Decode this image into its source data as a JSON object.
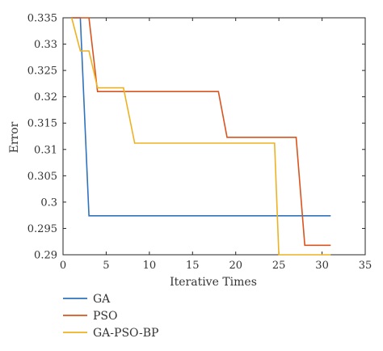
{
  "chart_data": {
    "type": "line",
    "title": "",
    "xlabel": "Iterative Times",
    "ylabel": "Error",
    "xlim": [
      0,
      35
    ],
    "ylim": [
      0.29,
      0.335
    ],
    "xticks": [
      0,
      5,
      10,
      15,
      20,
      25,
      30,
      35
    ],
    "yticks": [
      0.29,
      0.295,
      0.3,
      0.305,
      0.31,
      0.315,
      0.32,
      0.325,
      0.33,
      0.335
    ],
    "ytick_labels": [
      "0.29",
      "0.295",
      "0.3",
      "0.305",
      "0.31",
      "0.315",
      "0.32",
      "0.325",
      "0.33",
      "0.335"
    ],
    "grid": false,
    "legend_position": "below",
    "series": [
      {
        "name": "GA",
        "color": "#2f72bd",
        "points": [
          [
            1,
            0.335
          ],
          [
            2,
            0.335
          ],
          [
            3,
            0.2974
          ],
          [
            31,
            0.2974
          ]
        ]
      },
      {
        "name": "PSO",
        "color": "#d9541e",
        "points": [
          [
            1,
            0.335
          ],
          [
            3,
            0.335
          ],
          [
            4,
            0.321
          ],
          [
            18,
            0.321
          ],
          [
            19,
            0.3123
          ],
          [
            27,
            0.3123
          ],
          [
            28,
            0.2918
          ],
          [
            31,
            0.2918
          ]
        ]
      },
      {
        "name": "GA-PSO-BP",
        "color": "#edb222",
        "points": [
          [
            1,
            0.335
          ],
          [
            2,
            0.3287
          ],
          [
            3,
            0.3287
          ],
          [
            4,
            0.3217
          ],
          [
            7,
            0.3217
          ],
          [
            8.3,
            0.3112
          ],
          [
            24.5,
            0.3112
          ],
          [
            25,
            0.29
          ],
          [
            31,
            0.29
          ]
        ]
      }
    ]
  }
}
